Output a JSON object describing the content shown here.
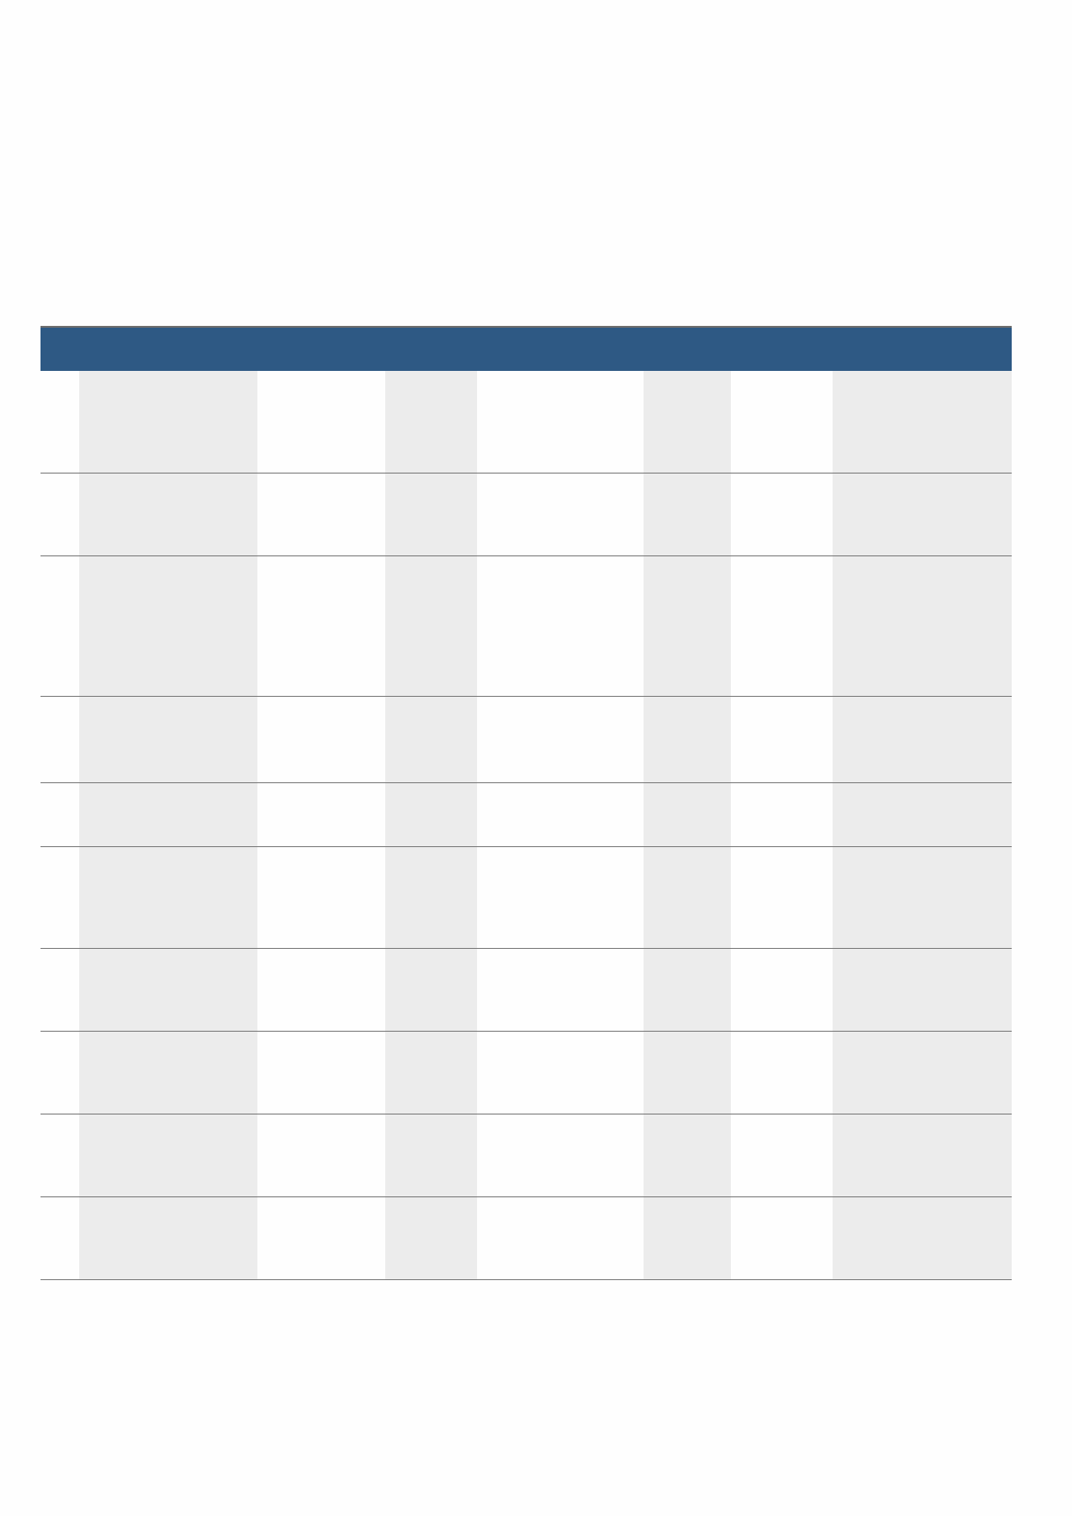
{
  "colors": {
    "header_background": "#2e5984",
    "shaded_column": "#ececec",
    "row_divider": "#7a7a7a",
    "page_background": "#fefefe"
  },
  "table": {
    "header": [
      "",
      "",
      "",
      "",
      "",
      "",
      "",
      ""
    ],
    "rows": [
      [
        "",
        "",
        "",
        "",
        "",
        "",
        "",
        ""
      ],
      [
        "",
        "",
        "",
        "",
        "",
        "",
        "",
        ""
      ],
      [
        "",
        "",
        "",
        "",
        "",
        "",
        "",
        ""
      ],
      [
        "",
        "",
        "",
        "",
        "",
        "",
        "",
        ""
      ],
      [
        "",
        "",
        "",
        "",
        "",
        "",
        "",
        ""
      ],
      [
        "",
        "",
        "",
        "",
        "",
        "",
        "",
        ""
      ],
      [
        "",
        "",
        "",
        "",
        "",
        "",
        "",
        ""
      ],
      [
        "",
        "",
        "",
        "",
        "",
        "",
        "",
        ""
      ],
      [
        "",
        "",
        "",
        "",
        "",
        "",
        "",
        ""
      ],
      [
        "",
        "",
        "",
        "",
        "",
        "",
        "",
        ""
      ]
    ]
  }
}
